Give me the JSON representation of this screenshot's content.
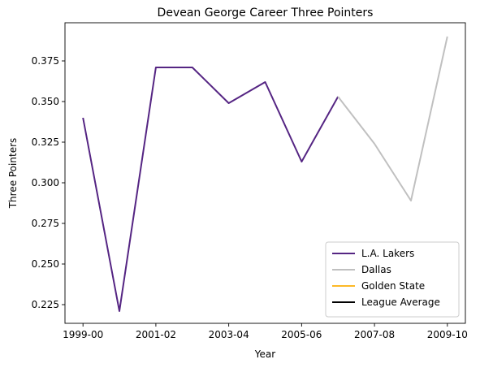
{
  "chart_data": {
    "type": "line",
    "title": "Devean George Career Three Pointers",
    "xlabel": "Year",
    "ylabel": "Three Pointers",
    "x_categories": [
      "1999-00",
      "2000-01",
      "2001-02",
      "2002-03",
      "2003-04",
      "2004-05",
      "2005-06",
      "2006-07",
      "2007-08",
      "2008-09",
      "2009-10"
    ],
    "x_tick_labels": [
      "1999-00",
      "2001-02",
      "2003-04",
      "2005-06",
      "2007-08",
      "2009-10"
    ],
    "y_ticks": [
      0.225,
      0.25,
      0.275,
      0.3,
      0.325,
      0.35,
      0.375
    ],
    "y_tick_labels": [
      "0.225",
      "0.250",
      "0.275",
      "0.300",
      "0.325",
      "0.350",
      "0.375"
    ],
    "ylim": [
      0.2135,
      0.3985
    ],
    "grid": false,
    "legend_placement": "lower-right",
    "series": [
      {
        "name": "L.A. Lakers",
        "color": "#552583",
        "x": [
          "1999-00",
          "2000-01",
          "2001-02",
          "2002-03",
          "2003-04",
          "2004-05",
          "2005-06",
          "2006-07"
        ],
        "values": [
          0.34,
          0.221,
          0.371,
          0.371,
          0.349,
          0.362,
          0.313,
          0.353
        ]
      },
      {
        "name": "Dallas",
        "color": "#c0c0c0",
        "x": [
          "2006-07",
          "2007-08",
          "2008-09",
          "2009-10"
        ],
        "values": [
          0.353,
          0.324,
          0.289,
          0.39
        ]
      },
      {
        "name": "Golden State",
        "color": "#fdb927",
        "x": [],
        "values": []
      },
      {
        "name": "League Average",
        "color": "#000000",
        "x": [],
        "values": []
      }
    ]
  }
}
